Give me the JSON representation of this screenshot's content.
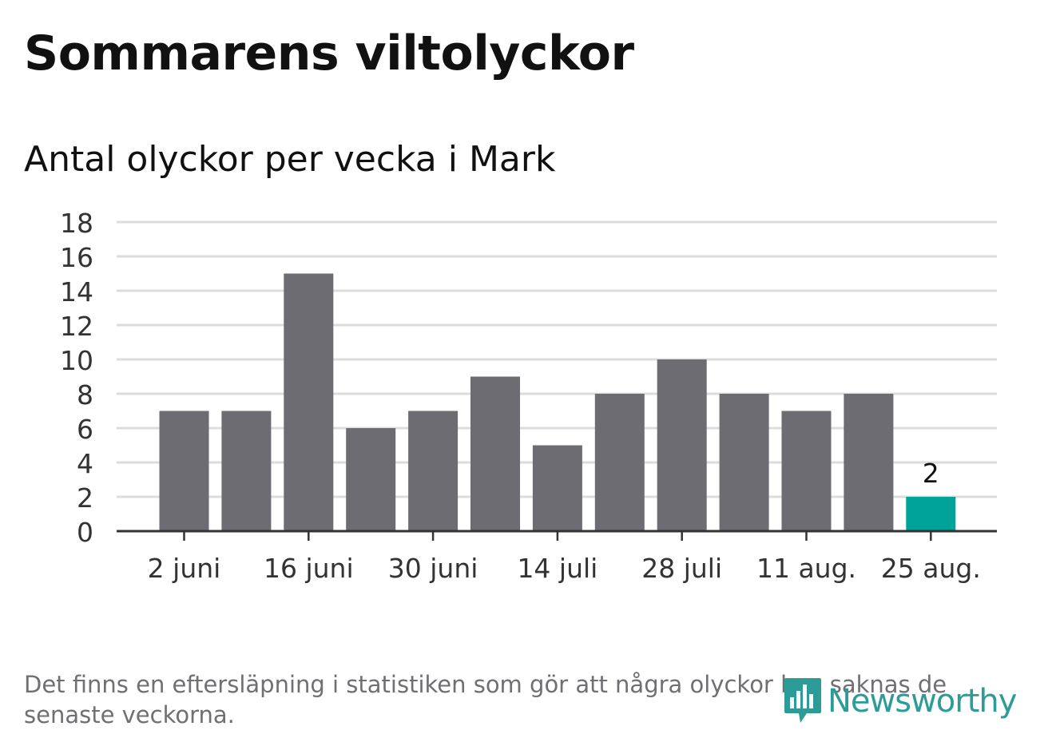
{
  "title": "Sommarens viltolyckor",
  "subtitle": "Antal olyckor per vecka i Mark",
  "footnote": "Det finns en eftersläpning i statistiken som gör att några olyckor kan saknas de senaste veckorna.",
  "logo": {
    "text": "Newsworthy",
    "icon": "bar-chart-speech-bubble-icon"
  },
  "colors": {
    "bar": "#6d6c72",
    "highlight": "#00a39a",
    "grid": "#dcdcdc",
    "axis": "#333333",
    "logo": "#2e9c96"
  },
  "chart_data": {
    "type": "bar",
    "title": "Antal olyckor per vecka i Mark",
    "xlabel": "",
    "ylabel": "",
    "ylim": [
      0,
      18
    ],
    "yticks": [
      "0",
      "2",
      "4",
      "6",
      "8",
      "10",
      "12",
      "14",
      "16",
      "18"
    ],
    "xtick_labels": [
      "2 juni",
      "16 juni",
      "30 juni",
      "14 juli",
      "28 juli",
      "11 aug.",
      "25 aug."
    ],
    "xtick_indices": [
      0,
      2,
      4,
      6,
      8,
      10,
      12
    ],
    "values": [
      7,
      7,
      15,
      6,
      7,
      9,
      5,
      8,
      10,
      8,
      7,
      8,
      2
    ],
    "highlight_index": 12,
    "data_labels": [
      {
        "index": 12,
        "text": "2"
      }
    ],
    "grid": true,
    "legend": "none"
  }
}
